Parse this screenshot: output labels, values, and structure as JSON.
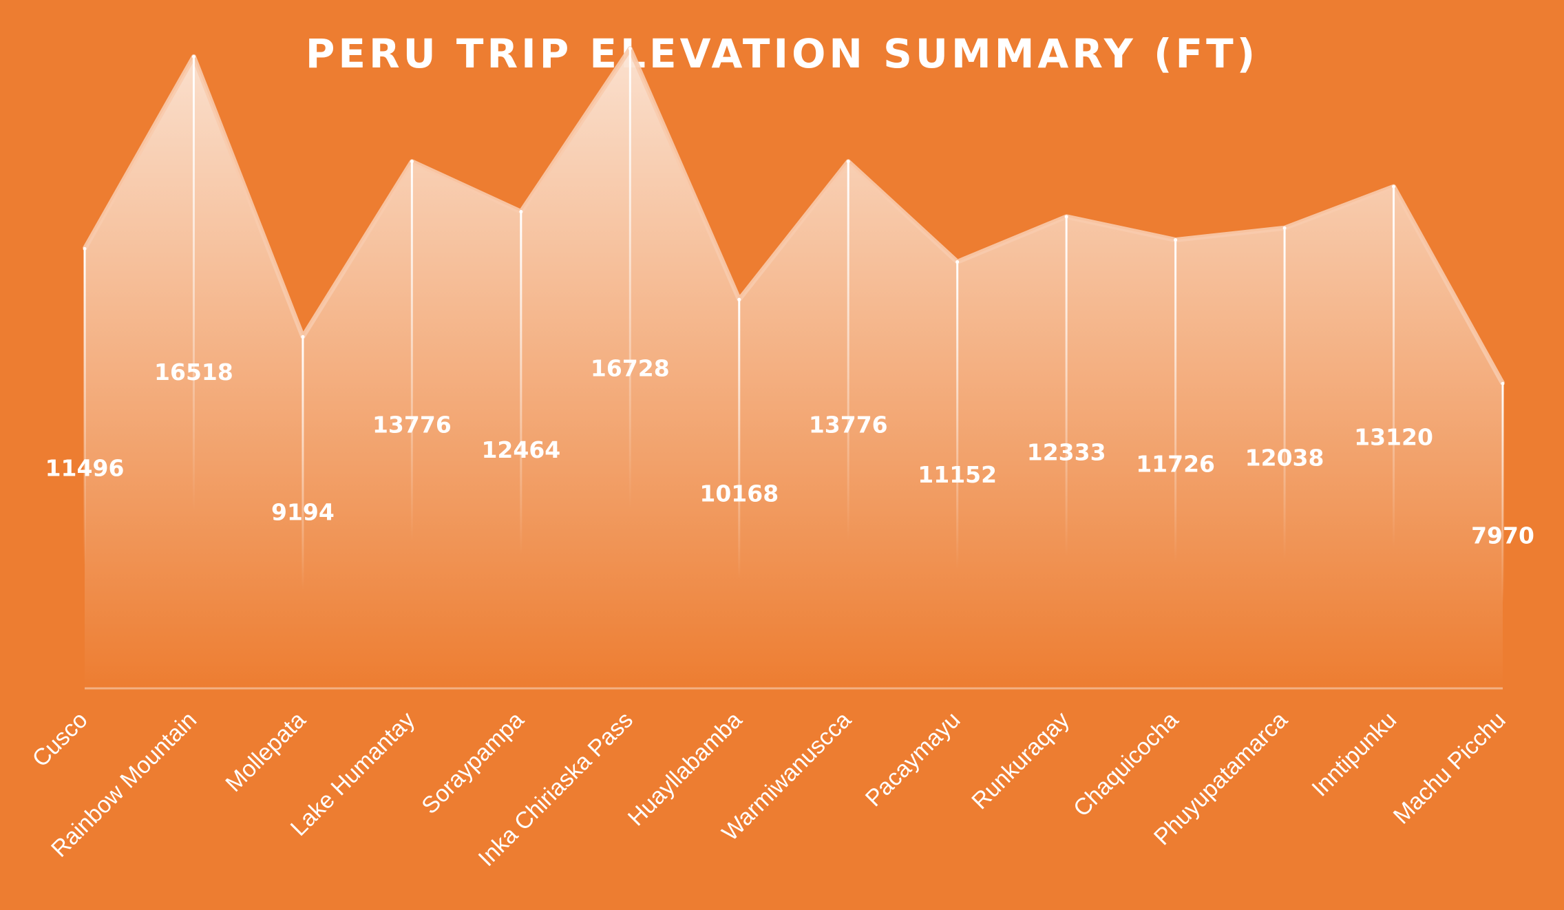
{
  "chart_data": {
    "type": "area",
    "title": "PERU TRIP ELEVATION SUMMARY (FT)",
    "xlabel": "",
    "ylabel": "",
    "categories": [
      "Cusco",
      "Rainbow Mountain",
      "Mollepata",
      "Lake Humantay",
      "Soraypampa",
      "Inka Chiriaska Pass",
      "Huayllabamba",
      "Warmiwanuscca",
      "Pacaymayu",
      "Runkuraqay",
      "Chaquicocha",
      "Phuyupatamarca",
      "Inntipunku",
      "Machu Picchu"
    ],
    "values": [
      11496,
      16518,
      9194,
      13776,
      12464,
      16728,
      10168,
      13776,
      11152,
      12333,
      11726,
      12038,
      13120,
      7970
    ],
    "value_labels": [
      "11496",
      "16518",
      "9194",
      "13776",
      "12464",
      "16728",
      "10168",
      "13776",
      "11152",
      "12333",
      "11726",
      "12038",
      "13120",
      "7970"
    ],
    "ylim": [
      0,
      18000
    ],
    "grid": false,
    "legend": "none",
    "axis_visible": false,
    "colors": {
      "background": "#ED7D31",
      "fill_top": "#FBE5D6",
      "fill_bottom": "#ED7D31",
      "line": "#F8CBAD",
      "drop_line": "#FFFFFF",
      "text": "#FFFFFF",
      "baseline": "#F4B183"
    }
  }
}
